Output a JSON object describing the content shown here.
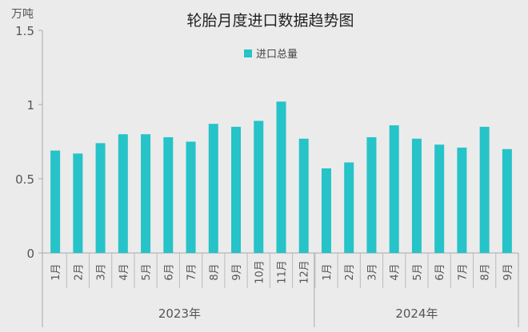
{
  "chart_data": {
    "type": "bar",
    "title": "轮胎月度进口数据趋势图",
    "ylabel": "万吨",
    "ylim": [
      0,
      1.5
    ],
    "yticks": [
      "0",
      "0.5",
      "1",
      "1.5"
    ],
    "legend": {
      "position": "top-center"
    },
    "grid": false,
    "color": "#26c3c8",
    "groups": [
      {
        "label": "2023年",
        "categories": [
          "1月",
          "2月",
          "3月",
          "4月",
          "5月",
          "6月",
          "7月",
          "8月",
          "9月",
          "10月",
          "11月",
          "12月"
        ]
      },
      {
        "label": "2024年",
        "categories": [
          "1月",
          "2月",
          "3月",
          "4月",
          "5月",
          "6月",
          "7月",
          "8月",
          "9月"
        ]
      }
    ],
    "series": [
      {
        "name": "进口总量",
        "values": [
          0.69,
          0.67,
          0.74,
          0.8,
          0.8,
          0.78,
          0.75,
          0.87,
          0.85,
          0.89,
          1.02,
          0.77,
          0.57,
          0.61,
          0.78,
          0.86,
          0.77,
          0.73,
          0.71,
          0.85,
          0.7
        ]
      }
    ]
  }
}
